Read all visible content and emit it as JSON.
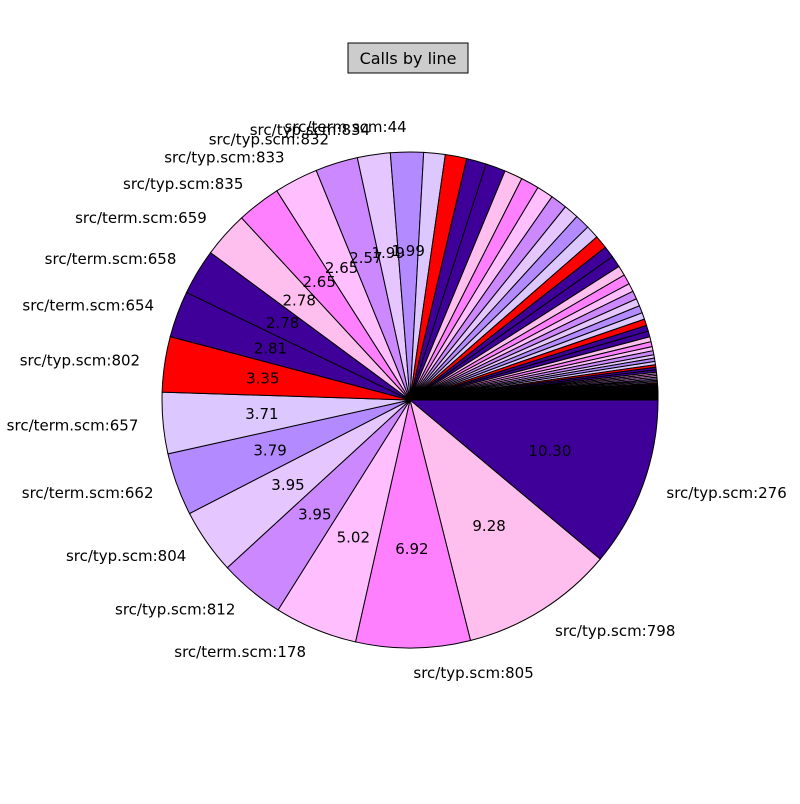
{
  "chart_data": {
    "type": "pie",
    "title": "Calls by line",
    "palette": [
      "#3f0099",
      "#ffbfee",
      "#ff80ff",
      "#ffbfff",
      "#cc88ff",
      "#e6c6ff",
      "#b38aff",
      "#dcc8ff",
      "#ff0000",
      "#3f0099"
    ],
    "slices": [
      {
        "label": "src/typ.scm:276",
        "value": 10.3
      },
      {
        "label": "src/typ.scm:798",
        "value": 9.28
      },
      {
        "label": "src/typ.scm:805",
        "value": 6.92
      },
      {
        "label": "src/term.scm:178",
        "value": 5.02
      },
      {
        "label": "src/typ.scm:812",
        "value": 3.95
      },
      {
        "label": "src/typ.scm:804",
        "value": 3.95
      },
      {
        "label": "src/term.scm:662",
        "value": 3.79
      },
      {
        "label": "src/term.scm:657",
        "value": 3.71
      },
      {
        "label": "src/typ.scm:802",
        "value": 3.35
      },
      {
        "label": "src/term.scm:654",
        "value": 2.81
      },
      {
        "label": "src/term.scm:658",
        "value": 2.78
      },
      {
        "label": "src/term.scm:659",
        "value": 2.78
      },
      {
        "label": "src/typ.scm:835",
        "value": 2.65
      },
      {
        "label": "src/typ.scm:833",
        "value": 2.65
      },
      {
        "label": "src/typ.scm:832",
        "value": 2.57
      },
      {
        "label": "src/typ.scm:834",
        "value": 1.99
      },
      {
        "label": "src/term.scm:44",
        "value": 1.99
      },
      {
        "label": "",
        "value": 1.3
      },
      {
        "label": "",
        "value": 1.3
      },
      {
        "label": "",
        "value": 1.2
      },
      {
        "label": "",
        "value": 1.2
      },
      {
        "label": "",
        "value": 1.1
      },
      {
        "label": "",
        "value": 1.1
      },
      {
        "label": "",
        "value": 1.0
      },
      {
        "label": "",
        "value": 1.0
      },
      {
        "label": "",
        "value": 0.9
      },
      {
        "label": "",
        "value": 0.9
      },
      {
        "label": "",
        "value": 0.8
      },
      {
        "label": "",
        "value": 0.8
      },
      {
        "label": "",
        "value": 0.7
      },
      {
        "label": "",
        "value": 0.7
      },
      {
        "label": "",
        "value": 0.6
      },
      {
        "label": "",
        "value": 0.6
      },
      {
        "label": "",
        "value": 0.5
      },
      {
        "label": "",
        "value": 0.5
      },
      {
        "label": "",
        "value": 0.45
      },
      {
        "label": "",
        "value": 0.45
      },
      {
        "label": "",
        "value": 0.4
      },
      {
        "label": "",
        "value": 0.4
      },
      {
        "label": "",
        "value": 0.35
      },
      {
        "label": "",
        "value": 0.35
      },
      {
        "label": "",
        "value": 0.3
      },
      {
        "label": "",
        "value": 0.3
      },
      {
        "label": "",
        "value": 0.25
      },
      {
        "label": "",
        "value": 0.25
      },
      {
        "label": "",
        "value": 0.2
      },
      {
        "label": "",
        "value": 0.2
      },
      {
        "label": "",
        "value": 0.2
      },
      {
        "label": "",
        "value": 0.15
      },
      {
        "label": "",
        "value": 0.15
      },
      {
        "label": "",
        "value": 0.15
      },
      {
        "label": "",
        "value": 0.1
      },
      {
        "label": "",
        "value": 0.1
      },
      {
        "label": "",
        "value": 0.1
      },
      {
        "label": "",
        "value": 0.1
      },
      {
        "label": "",
        "value": 0.08
      },
      {
        "label": "",
        "value": 0.08
      },
      {
        "label": "",
        "value": 0.08
      },
      {
        "label": "",
        "value": 0.07
      },
      {
        "label": "",
        "value": 0.07
      },
      {
        "label": "",
        "value": 0.07
      },
      {
        "label": "",
        "value": 0.06
      },
      {
        "label": "",
        "value": 0.06
      },
      {
        "label": "",
        "value": 0.06
      },
      {
        "label": "",
        "value": 0.05
      },
      {
        "label": "",
        "value": 0.05
      },
      {
        "label": "",
        "value": 0.05
      },
      {
        "label": "",
        "value": 0.05
      },
      {
        "label": "",
        "value": 0.04
      },
      {
        "label": "",
        "value": 0.04
      },
      {
        "label": "",
        "value": 0.04
      },
      {
        "label": "",
        "value": 0.04
      },
      {
        "label": "",
        "value": 0.03
      },
      {
        "label": "",
        "value": 0.03
      },
      {
        "label": "",
        "value": 0.03
      },
      {
        "label": "",
        "value": 0.03
      },
      {
        "label": "",
        "value": 0.02
      },
      {
        "label": "",
        "value": 0.02
      },
      {
        "label": "",
        "value": 0.02
      },
      {
        "label": "",
        "value": 0.02
      },
      {
        "label": "",
        "value": 0.02
      },
      {
        "label": "",
        "value": 0.01
      },
      {
        "label": "",
        "value": 0.01
      },
      {
        "label": "",
        "value": 0.01
      },
      {
        "label": "",
        "value": 0.01
      },
      {
        "label": "",
        "value": 0.01
      }
    ]
  }
}
